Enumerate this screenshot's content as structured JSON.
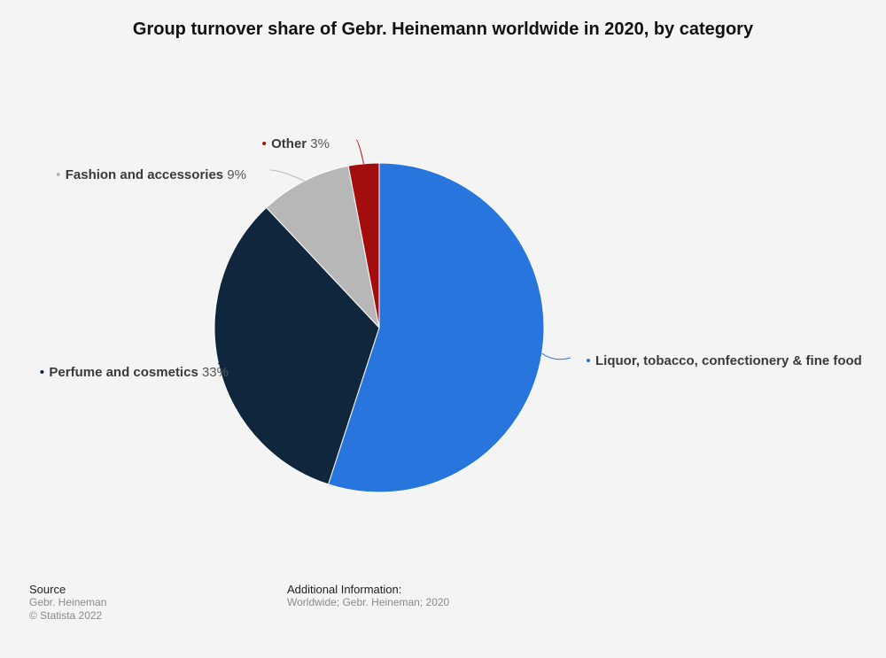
{
  "chart_data": {
    "type": "pie",
    "title": "Group turnover share of Gebr. Heinemann worldwide in 2020, by category",
    "slices": [
      {
        "name": "Liquor, tobacco, confectionery & fine food",
        "value": 55,
        "label": "",
        "color": "#2876dd"
      },
      {
        "name": "Perfume and cosmetics",
        "value": 33,
        "label": "33%",
        "color": "#10263d"
      },
      {
        "name": "Fashion and accessories",
        "value": 9,
        "label": "9%",
        "color": "#b7b7b7"
      },
      {
        "name": "Other",
        "value": 3,
        "label": "3%",
        "color": "#a30d0d"
      }
    ],
    "start": "12 o'clock",
    "direction": "clockwise"
  },
  "footer": {
    "source_heading": "Source",
    "source_text": "Gebr. Heineman",
    "copyright": "© Statista 2022",
    "info_heading": "Additional Information:",
    "info_text": "Worldwide; Gebr. Heineman; 2020"
  }
}
